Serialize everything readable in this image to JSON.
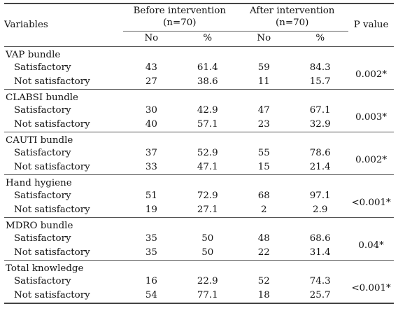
{
  "table": {
    "headers": {
      "variables": "Variables",
      "before": "Before intervention (n=70)",
      "after": "After intervention (n=70)",
      "pvalue": "P value",
      "no": "No",
      "pct": "%"
    },
    "groups": [
      {
        "name": "VAP bundle",
        "rows": [
          {
            "label": "Satisfactory",
            "before_no": "43",
            "before_pct": "61.4",
            "after_no": "59",
            "after_pct": "84.3"
          },
          {
            "label": "Not satisfactory",
            "before_no": "27",
            "before_pct": "38.6",
            "after_no": "11",
            "after_pct": "15.7"
          }
        ],
        "p_value": "0.002*"
      },
      {
        "name": "CLABSI bundle",
        "rows": [
          {
            "label": "Satisfactory",
            "before_no": "30",
            "before_pct": "42.9",
            "after_no": "47",
            "after_pct": "67.1"
          },
          {
            "label": "Not satisfactory",
            "before_no": "40",
            "before_pct": "57.1",
            "after_no": "23",
            "after_pct": "32.9"
          }
        ],
        "p_value": "0.003*"
      },
      {
        "name": "CAUTI bundle",
        "rows": [
          {
            "label": "Satisfactory",
            "before_no": "37",
            "before_pct": "52.9",
            "after_no": "55",
            "after_pct": "78.6"
          },
          {
            "label": "Not satisfactory",
            "before_no": "33",
            "before_pct": "47.1",
            "after_no": "15",
            "after_pct": "21.4"
          }
        ],
        "p_value": "0.002*"
      },
      {
        "name": "Hand hygiene",
        "rows": [
          {
            "label": "Satisfactory",
            "before_no": "51",
            "before_pct": "72.9",
            "after_no": "68",
            "after_pct": "97.1"
          },
          {
            "label": "Not satisfactory",
            "before_no": "19",
            "before_pct": "27.1",
            "after_no": "2",
            "after_pct": "2.9"
          }
        ],
        "p_value": "<0.001*"
      },
      {
        "name": "MDRO bundle",
        "rows": [
          {
            "label": "Satisfactory",
            "before_no": "35",
            "before_pct": "50",
            "after_no": "48",
            "after_pct": "68.6"
          },
          {
            "label": "Not satisfactory",
            "before_no": "35",
            "before_pct": "50",
            "after_no": "22",
            "after_pct": "31.4"
          }
        ],
        "p_value": "0.04*"
      },
      {
        "name": "Total knowledge",
        "rows": [
          {
            "label": "Satisfactory",
            "before_no": "16",
            "before_pct": "22.9",
            "after_no": "52",
            "after_pct": "74.3"
          },
          {
            "label": "Not satisfactory",
            "before_no": "54",
            "before_pct": "77.1",
            "after_no": "18",
            "after_pct": "25.7"
          }
        ],
        "p_value": "<0.001*"
      }
    ]
  }
}
